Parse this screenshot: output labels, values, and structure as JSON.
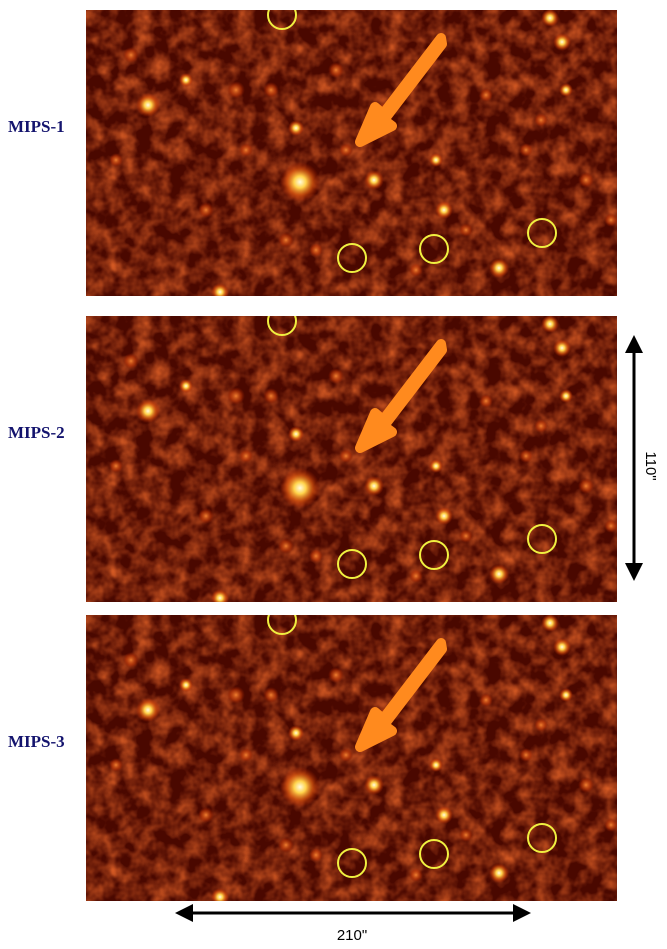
{
  "panels": [
    {
      "label": "MIPS-1"
    },
    {
      "label": "MIPS-2"
    },
    {
      "label": "MIPS-3"
    }
  ],
  "scale": {
    "vertical": "110\"",
    "horizontal": "210\""
  }
}
